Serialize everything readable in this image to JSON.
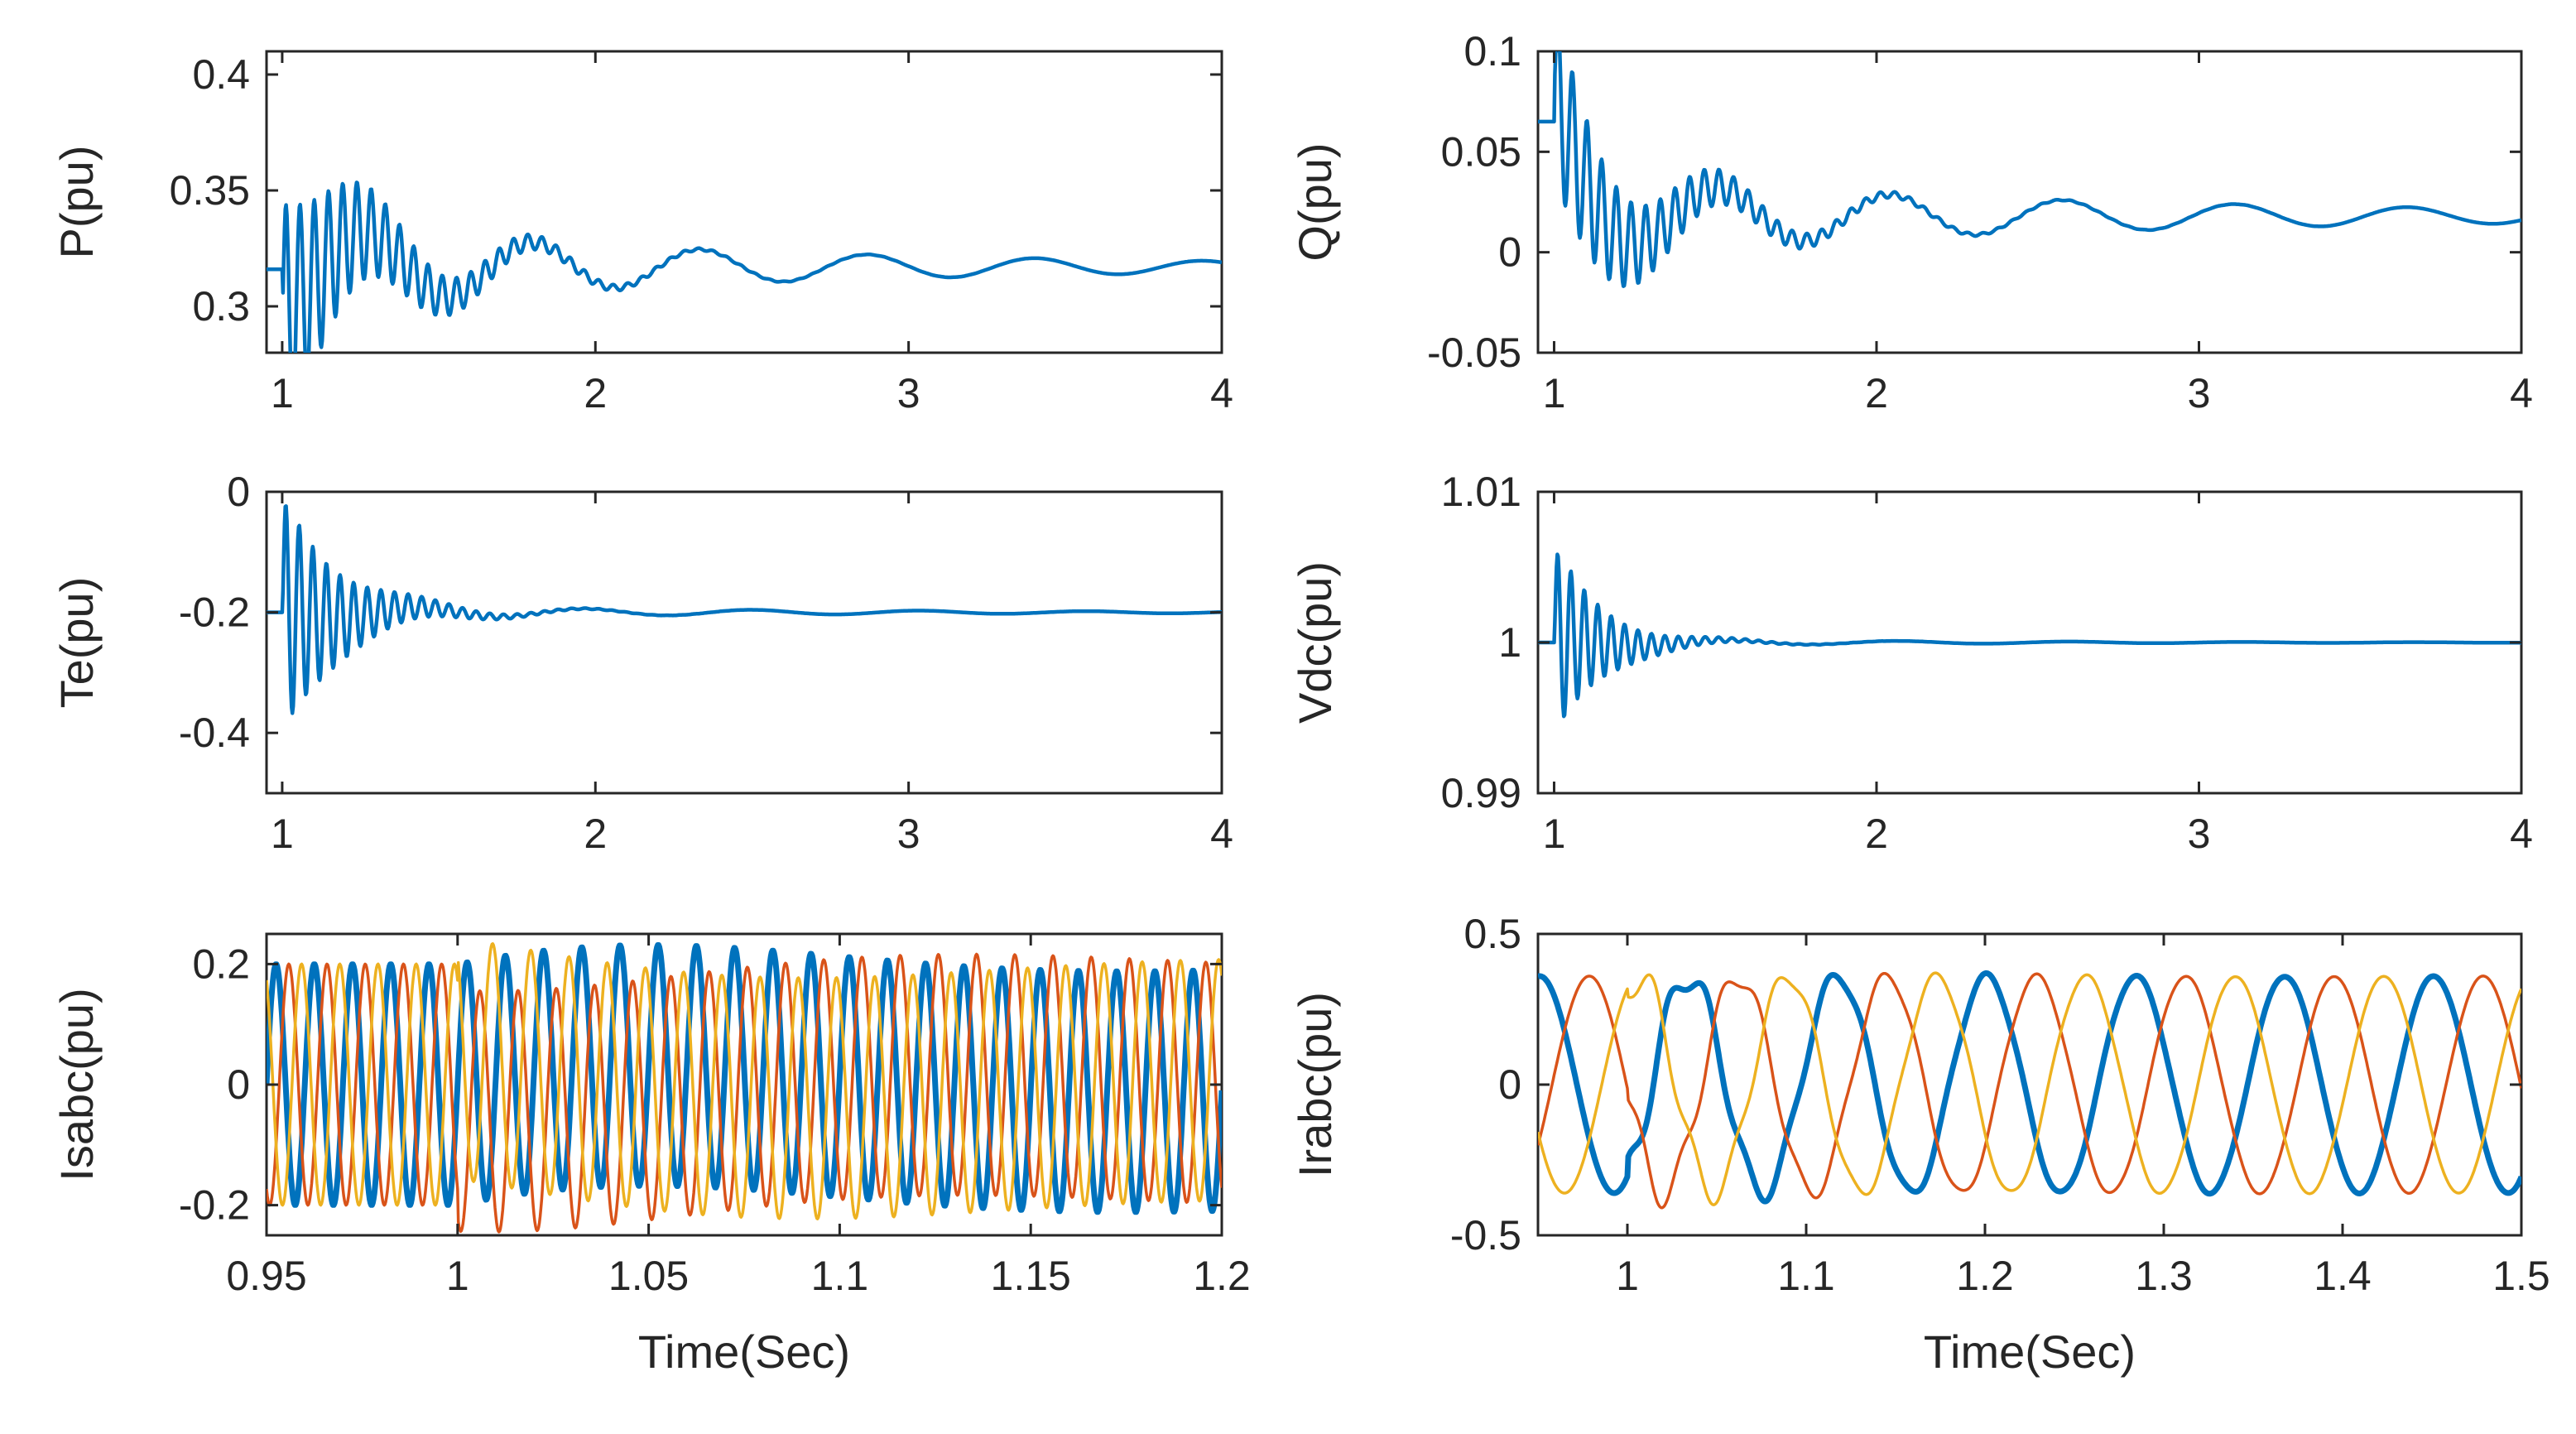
{
  "figure": {
    "layout": "3 rows x 2 columns of time-domain plots"
  },
  "colors": {
    "phase_a": "#0072BD",
    "phase_b": "#D95319",
    "phase_c": "#EDB120",
    "axis": "#262626"
  },
  "chart_data": [
    {
      "id": "P",
      "type": "line",
      "ylabel": "P(pu)",
      "xlabel": "",
      "xlim": [
        0.95,
        4
      ],
      "ylim": [
        0.28,
        0.41
      ],
      "xticks": [
        1,
        2,
        3,
        4
      ],
      "xtick_labels": [
        "1",
        "2",
        "3",
        "4"
      ],
      "yticks": [
        0.3,
        0.35,
        0.4
      ],
      "ytick_labels": [
        "0.3",
        "0.35",
        "0.4"
      ],
      "series": [
        {
          "name": "P",
          "color": "#0072BD",
          "signal": {
            "start": 0.95,
            "end": 4,
            "step": 0.0025,
            "pre": 0.316,
            "base": 0.317,
            "osc": [
              {
                "amp": 0.018,
                "freq": 1.87,
                "decay": 0.65,
                "phase": 3.14
              }
            ],
            "burst": {
              "amp": 0.05,
              "freq": 22,
              "decay": 3.4,
              "peak_at": 1.02
            }
          }
        }
      ]
    },
    {
      "id": "Q",
      "type": "line",
      "ylabel": "Q(pu)",
      "xlabel": "",
      "xlim": [
        0.95,
        4
      ],
      "ylim": [
        -0.05,
        0.1
      ],
      "xticks": [
        1,
        2,
        3,
        4
      ],
      "xtick_labels": [
        "1",
        "2",
        "3",
        "4"
      ],
      "yticks": [
        -0.05,
        0,
        0.05,
        0.1
      ],
      "ytick_labels": [
        "-0.05",
        "0",
        "0.05",
        "0.1"
      ],
      "series": [
        {
          "name": "Q",
          "color": "#0072BD",
          "signal": {
            "start": 0.95,
            "end": 4,
            "step": 0.0025,
            "pre": 0.065,
            "base": 0.018,
            "osc": [
              {
                "amp": 0.019,
                "freq": 1.87,
                "decay": 0.55,
                "phase": 0.3
              }
            ],
            "burst": {
              "amp": 0.045,
              "freq": 22,
              "decay": 3.2,
              "peak_at": 1.02
            }
          }
        }
      ]
    },
    {
      "id": "Te",
      "type": "line",
      "ylabel": "Te(pu)",
      "xlabel": "",
      "xlim": [
        0.95,
        4
      ],
      "ylim": [
        -0.5,
        0
      ],
      "xticks": [
        1,
        2,
        3,
        4
      ],
      "xtick_labels": [
        "1",
        "2",
        "3",
        "4"
      ],
      "yticks": [
        -0.4,
        -0.2,
        0
      ],
      "ytick_labels": [
        "-0.4",
        "-0.2",
        "0"
      ],
      "series": [
        {
          "name": "Te",
          "color": "#0072BD",
          "signal": {
            "start": 0.95,
            "end": 4,
            "step": 0.0025,
            "pre": -0.2,
            "base": -0.2,
            "osc": [
              {
                "amp": 0.012,
                "freq": 1.87,
                "decay": 0.7,
                "phase": 1.2
              }
            ],
            "burst": {
              "amp": 0.2,
              "freq": 23,
              "decay": 5.5,
              "peak_at": 1.015
            }
          }
        }
      ]
    },
    {
      "id": "Vdc",
      "type": "line",
      "ylabel": "Vdc(pu)",
      "xlabel": "",
      "xlim": [
        0.95,
        4
      ],
      "ylim": [
        0.99,
        1.01
      ],
      "xticks": [
        1,
        2,
        3,
        4
      ],
      "xtick_labels": [
        "1",
        "2",
        "3",
        "4"
      ],
      "yticks": [
        0.99,
        1,
        1.01
      ],
      "ytick_labels": [
        "0.99",
        "1",
        "1.01"
      ],
      "series": [
        {
          "name": "Vdc",
          "color": "#0072BD",
          "signal": {
            "start": 0.95,
            "end": 4,
            "step": 0.0025,
            "pre": 1.0,
            "base": 1.0,
            "osc": [
              {
                "amp": 0.0003,
                "freq": 1.87,
                "decay": 1.0,
                "phase": 0.0
              }
            ],
            "burst": {
              "amp": 0.0065,
              "freq": 24,
              "decay": 7.0,
              "peak_at": 1.02
            }
          }
        }
      ]
    },
    {
      "id": "Isabc",
      "type": "line",
      "ylabel": "Isabc(pu)",
      "xlabel": "Time(Sec)",
      "xlim": [
        0.95,
        1.2
      ],
      "ylim": [
        -0.25,
        0.25
      ],
      "xticks": [
        0.95,
        1,
        1.05,
        1.1,
        1.15,
        1.2
      ],
      "xtick_labels": [
        "0.95",
        "1",
        "1.05",
        "1.1",
        "1.15",
        "1.2"
      ],
      "yticks": [
        -0.2,
        0,
        0.2
      ],
      "ytick_labels": [
        "-0.2",
        "0",
        "0.2"
      ],
      "series": [
        {
          "name": "Isa",
          "color": "#0072BD",
          "width": 7,
          "signal": {
            "three_phase": true,
            "start": 0.95,
            "end": 1.2,
            "step": 0.0002,
            "amp": 0.2,
            "freq": 100,
            "phase": 0.0,
            "dist": {
              "start": 1.0,
              "amp": 0.05,
              "freq": 4,
              "decay": 8
            }
          }
        },
        {
          "name": "Isb",
          "color": "#D95319",
          "width": 3.5,
          "signal": {
            "three_phase": true,
            "start": 0.95,
            "end": 1.2,
            "step": 0.0002,
            "amp": 0.2,
            "freq": 100,
            "phase": -2.094,
            "dist": {
              "start": 1.0,
              "amp": 0.05,
              "freq": 4,
              "decay": 8
            }
          }
        },
        {
          "name": "Isc",
          "color": "#EDB120",
          "width": 3.5,
          "signal": {
            "three_phase": true,
            "start": 0.95,
            "end": 1.2,
            "step": 0.0002,
            "amp": 0.2,
            "freq": 100,
            "phase": 2.094,
            "dist": {
              "start": 1.0,
              "amp": 0.05,
              "freq": 4,
              "decay": 8
            }
          }
        }
      ]
    },
    {
      "id": "Irabc",
      "type": "line",
      "ylabel": "Irabc(pu)",
      "xlabel": "Time(Sec)",
      "xlim": [
        0.95,
        1.5
      ],
      "ylim": [
        -0.5,
        0.5
      ],
      "xticks": [
        1,
        1.1,
        1.2,
        1.3,
        1.4,
        1.5
      ],
      "xtick_labels": [
        "1",
        "1.1",
        "1.2",
        "1.3",
        "1.4",
        "1.5"
      ],
      "yticks": [
        -0.5,
        0,
        0.5
      ],
      "ytick_labels": [
        "-0.5",
        "0",
        "0.5"
      ],
      "series": [
        {
          "name": "Ira",
          "color": "#0072BD",
          "width": 7,
          "signal": {
            "three_phase": true,
            "start": 0.95,
            "end": 1.5,
            "step": 0.0005,
            "amp": 0.36,
            "freq": 12,
            "phase": 1.5,
            "dist": {
              "start": 1.0,
              "amp": 0.06,
              "freq": 45,
              "decay": 9
            }
          }
        },
        {
          "name": "Irb",
          "color": "#D95319",
          "width": 3.5,
          "signal": {
            "three_phase": true,
            "start": 0.95,
            "end": 1.5,
            "step": 0.0005,
            "amp": 0.36,
            "freq": 12,
            "phase": -0.594,
            "dist": {
              "start": 1.0,
              "amp": 0.06,
              "freq": 45,
              "decay": 9
            }
          }
        },
        {
          "name": "Irc",
          "color": "#EDB120",
          "width": 3.5,
          "signal": {
            "three_phase": true,
            "start": 0.95,
            "end": 1.5,
            "step": 0.0005,
            "amp": 0.36,
            "freq": 12,
            "phase": 3.594,
            "dist": {
              "start": 1.0,
              "amp": 0.06,
              "freq": 45,
              "decay": 9
            }
          }
        }
      ]
    }
  ]
}
